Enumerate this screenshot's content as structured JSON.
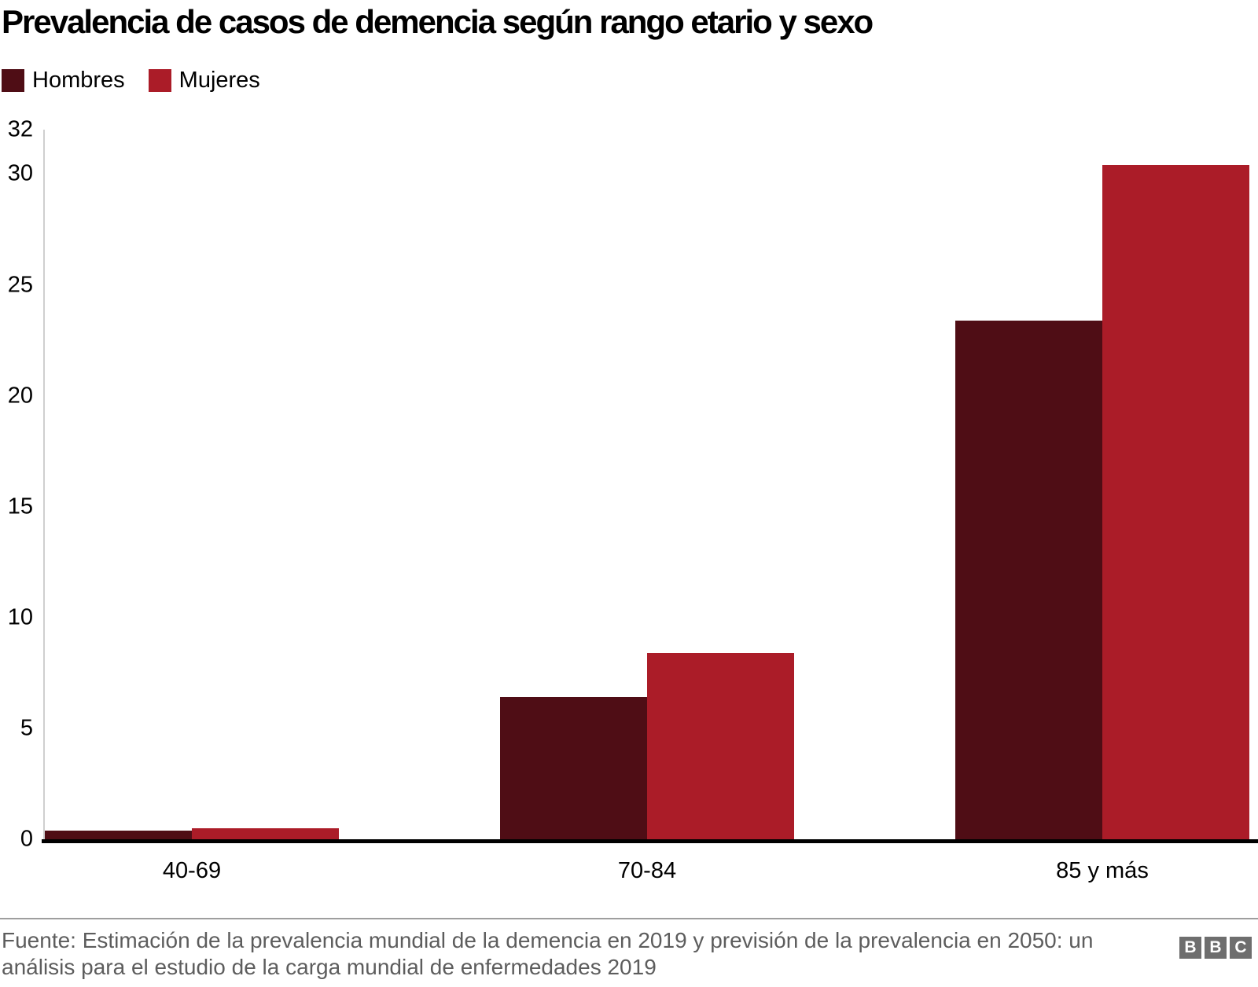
{
  "title": "Prevalencia de casos de demencia según rango etario y sexo",
  "legend": [
    {
      "label": "Hombres",
      "color": "#4f0d15"
    },
    {
      "label": "Mujeres",
      "color": "#ab1c28"
    }
  ],
  "chart_data": {
    "type": "bar",
    "title": "Prevalencia de casos de demencia según rango etario y sexo",
    "categories": [
      "40-69",
      "70-84",
      "85 y más"
    ],
    "series": [
      {
        "name": "Hombres",
        "color": "#4f0d15",
        "values": [
          0.4,
          6.4,
          23.4
        ]
      },
      {
        "name": "Mujeres",
        "color": "#ab1c28",
        "values": [
          0.5,
          8.4,
          30.4
        ]
      }
    ],
    "xlabel": "",
    "ylabel": "",
    "ylim": [
      0,
      32
    ],
    "yticks": [
      0,
      5,
      10,
      15,
      20,
      25,
      30,
      32
    ],
    "grid": false,
    "legend_position": "top-left",
    "axis_color": "#cfcfcf",
    "baseline_color": "#000000"
  },
  "footer": {
    "source_text": "Fuente: Estimación de la prevalencia mundial de la demencia en 2019 y previsión de la prevalencia en 2050: un análisis para el estudio de la carga mundial de enfermedades 2019",
    "logo_letters": [
      "B",
      "B",
      "C"
    ]
  }
}
